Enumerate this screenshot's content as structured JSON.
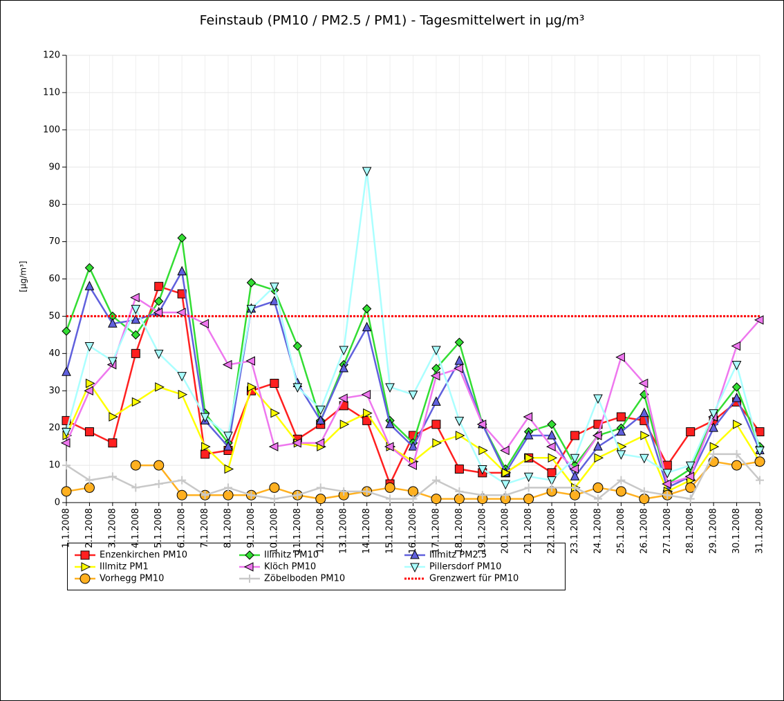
{
  "chart_data": {
    "type": "line",
    "title": "Feinstaub (PM10 / PM2.5 / PM1) -  Tagesmittelwert in µg/m³",
    "y_label": "[µg/m³]",
    "categories": [
      "1.1.2008",
      "2.1.2008",
      "3.1.2008",
      "4.1.2008",
      "5.1.2008",
      "6.1.2008",
      "7.1.2008",
      "8.1.2008",
      "9.1.2008",
      "10.1.2008",
      "11.1.2008",
      "12.1.2008",
      "13.1.2008",
      "14.1.2008",
      "15.1.2008",
      "16.1.2008",
      "17.1.2008",
      "18.1.2008",
      "19.1.2008",
      "20.1.2008",
      "21.1.2008",
      "22.1.2008",
      "23.1.2008",
      "24.1.2008",
      "25.1.2008",
      "26.1.2008",
      "27.1.2008",
      "28.1.2008",
      "29.1.2008",
      "30.1.2008",
      "31.1.2008"
    ],
    "series": [
      {
        "name": "Enzenkirchen PM10",
        "color": "#ff2020",
        "marker": "square",
        "values": [
          22,
          19,
          16,
          40,
          58,
          56,
          13,
          14,
          30,
          32,
          17,
          21,
          26,
          22,
          5,
          18,
          21,
          9,
          8,
          8,
          12,
          8,
          18,
          21,
          23,
          22,
          10,
          19,
          22,
          27,
          19
        ]
      },
      {
        "name": "Illmitz PM10",
        "color": "#33dd33",
        "marker": "diamond",
        "values": [
          46,
          63,
          50,
          45,
          54,
          71,
          24,
          16,
          59,
          57,
          42,
          22,
          37,
          52,
          22,
          16,
          36,
          43,
          21,
          9,
          19,
          21,
          10,
          18,
          20,
          29,
          5,
          9,
          23,
          31,
          15
        ]
      },
      {
        "name": "Illmitz PM2.5",
        "color": "#6060dd",
        "marker": "triangle-up",
        "values": [
          35,
          58,
          48,
          49,
          51,
          62,
          22,
          15,
          52,
          54,
          32,
          22,
          36,
          47,
          21,
          15,
          27,
          38,
          21,
          8,
          18,
          18,
          7,
          15,
          19,
          24,
          4,
          7,
          20,
          28,
          14
        ]
      },
      {
        "name": "Illmitz PM1",
        "color": "#ffff00",
        "marker": "triangle-right",
        "values": [
          18,
          32,
          23,
          27,
          31,
          29,
          15,
          9,
          31,
          24,
          16,
          15,
          21,
          24,
          15,
          11,
          16,
          18,
          14,
          8,
          12,
          12,
          4,
          12,
          15,
          18,
          3,
          6,
          15,
          21,
          11
        ]
      },
      {
        "name": "Klöch PM10",
        "color": "#ee77ee",
        "marker": "triangle-left",
        "values": [
          16,
          30,
          37,
          55,
          51,
          51,
          48,
          37,
          38,
          15,
          16,
          16,
          28,
          29,
          15,
          10,
          34,
          36,
          21,
          14,
          23,
          15,
          9,
          18,
          39,
          32,
          5,
          7,
          23,
          42,
          49
        ]
      },
      {
        "name": "Pillersdorf PM10",
        "color": "#aaffff",
        "marker": "triangle-down",
        "values": [
          19,
          42,
          38,
          52,
          40,
          34,
          23,
          18,
          52,
          58,
          31,
          25,
          41,
          89,
          31,
          29,
          41,
          22,
          9,
          5,
          7,
          6,
          12,
          28,
          13,
          12,
          8,
          10,
          24,
          37,
          14
        ]
      },
      {
        "name": "Vorhegg PM10",
        "color": "#ffb020",
        "marker": "circle",
        "values": [
          3,
          4,
          null,
          10,
          10,
          2,
          2,
          2,
          2,
          4,
          2,
          1,
          2,
          3,
          4,
          3,
          1,
          1,
          1,
          1,
          1,
          3,
          2,
          4,
          3,
          1,
          2,
          4,
          11,
          10,
          11
        ]
      },
      {
        "name": "Zöbelboden PM10",
        "color": "#c8c8c8",
        "marker": "plus",
        "values": [
          10,
          6,
          7,
          4,
          5,
          6,
          2,
          4,
          2,
          1,
          2,
          4,
          3,
          3,
          1,
          1,
          6,
          3,
          2,
          2,
          4,
          4,
          4,
          1,
          6,
          3,
          2,
          1,
          13,
          13,
          6
        ]
      }
    ],
    "reference_line": {
      "name": "Grenzwert für PM10",
      "value": 50,
      "color": "#ff0000"
    },
    "ylim": [
      0,
      120
    ],
    "yticks": [
      0,
      10,
      20,
      30,
      40,
      50,
      60,
      70,
      80,
      90,
      100,
      110,
      120
    ],
    "grid": true
  }
}
